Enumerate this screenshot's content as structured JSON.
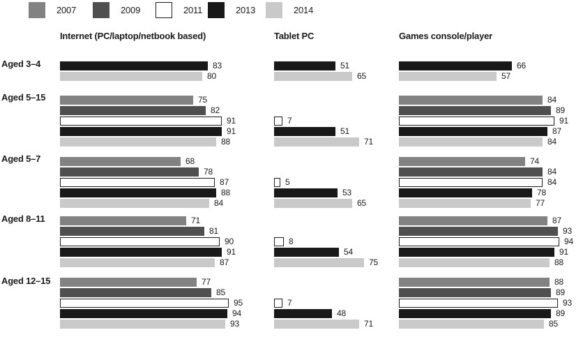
{
  "legend": {
    "items": [
      {
        "year": "2007",
        "color": "#828282"
      },
      {
        "year": "2009",
        "color": "#4f4f4f"
      },
      {
        "year": "2011",
        "color": "#ffffff",
        "border": "#1a1a1a"
      },
      {
        "year": "2013",
        "color": "#191919"
      },
      {
        "year": "2014",
        "color": "#c9c9c9"
      }
    ]
  },
  "chart_data": {
    "type": "bar",
    "orientation": "horizontal",
    "value_unit": "percent",
    "grid": false,
    "legend_position": "top",
    "bar_labels": true,
    "xlim": [
      0,
      100
    ],
    "years": [
      "2007",
      "2009",
      "2011",
      "2013",
      "2014"
    ],
    "groups": [
      "Aged 3–4",
      "Aged 5–15",
      "Aged 5–7",
      "Aged 8–11",
      "Aged 12–15"
    ],
    "panels": [
      {
        "title": "Internet (PC/laptop/netbook based)",
        "values": [
          [
            null,
            null,
            null,
            83,
            80
          ],
          [
            75,
            82,
            91,
            91,
            88
          ],
          [
            68,
            78,
            87,
            88,
            84
          ],
          [
            71,
            81,
            90,
            91,
            87
          ],
          [
            77,
            85,
            95,
            94,
            93
          ]
        ]
      },
      {
        "title": "Tablet PC",
        "values": [
          [
            null,
            null,
            null,
            51,
            65
          ],
          [
            null,
            null,
            7,
            51,
            71
          ],
          [
            null,
            null,
            5,
            53,
            65
          ],
          [
            null,
            null,
            8,
            54,
            75
          ],
          [
            null,
            null,
            7,
            48,
            71
          ]
        ]
      },
      {
        "title": "Games console/player",
        "values": [
          [
            null,
            null,
            null,
            66,
            57
          ],
          [
            84,
            89,
            91,
            87,
            84
          ],
          [
            74,
            84,
            84,
            78,
            77
          ],
          [
            87,
            93,
            94,
            91,
            88
          ],
          [
            88,
            89,
            93,
            89,
            85
          ]
        ]
      }
    ]
  }
}
